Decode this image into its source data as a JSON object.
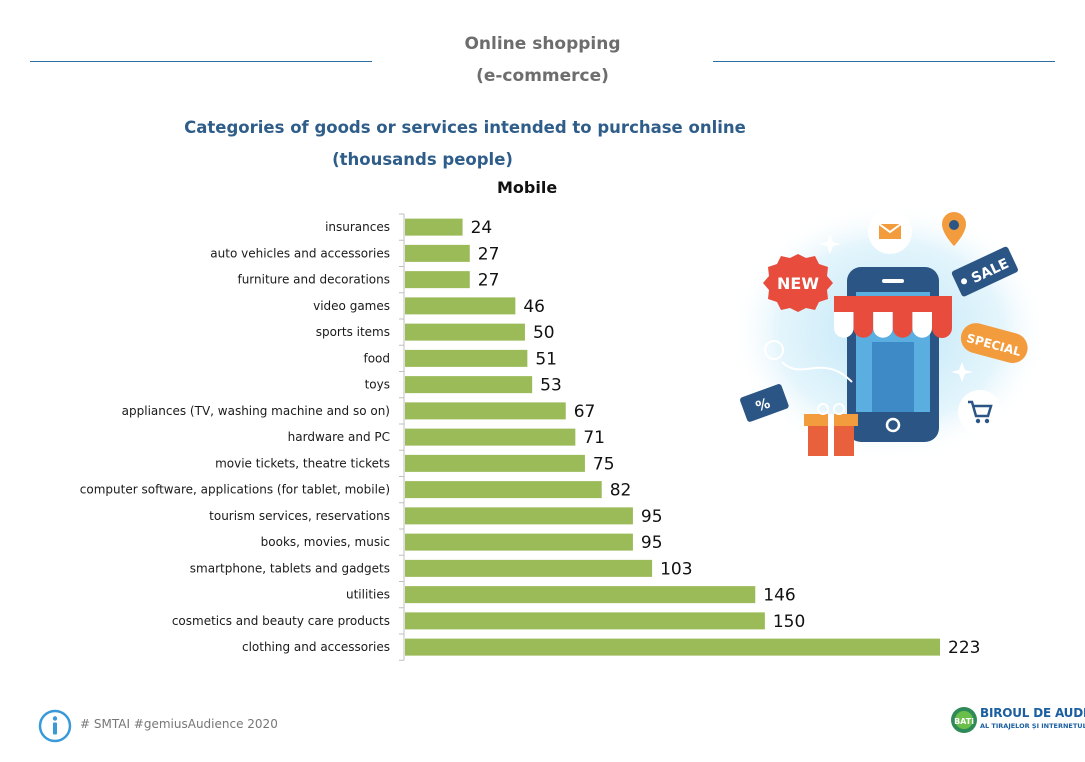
{
  "header": {
    "title_line1": "Online shopping",
    "title_line2": "(e-commerce)"
  },
  "chart_data": {
    "type": "bar",
    "orientation": "horizontal",
    "title": "Categories of goods or services intended to purchase online",
    "subtitle": "(thousands people)",
    "series_name": "Mobile",
    "categories": [
      "insurances",
      "auto vehicles and accessories",
      "furniture and decorations",
      "video games",
      "sports items",
      "food",
      "toys",
      "appliances (TV, washing machine and so on)",
      "hardware and PC",
      "movie tickets, theatre tickets",
      "computer software, applications (for tablet, mobile)",
      "tourism services, reservations",
      "books, movies, music",
      "smartphone, tablets and gadgets",
      "utilities",
      "cosmetics and beauty care products",
      "clothing and accessories"
    ],
    "values": [
      24,
      27,
      27,
      46,
      50,
      51,
      53,
      67,
      71,
      75,
      82,
      95,
      95,
      103,
      146,
      150,
      223
    ],
    "bar_color": "#9bbb59",
    "xlim": [
      0,
      223
    ]
  },
  "illustration": {
    "badge_new": "NEW",
    "badge_sale": "SALE",
    "badge_special": "SPECIAL",
    "tag_percent": "%"
  },
  "footer": {
    "source": "# SMTAI #gemiusAudience 2020",
    "logo_badge": "BATi",
    "logo_line1": "BIROUL DE AUDIT",
    "logo_line2": "AL TIRAJELOR ȘI INTERNETULUI"
  }
}
